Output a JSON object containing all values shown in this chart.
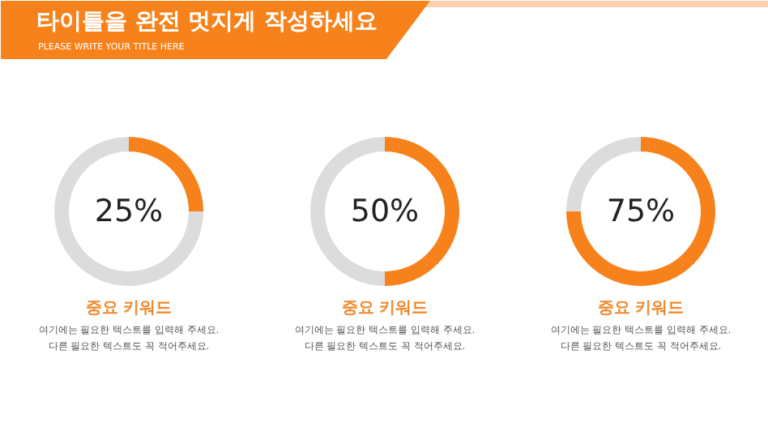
{
  "chart_data": [
    {
      "type": "other",
      "title": "타이틀을 완전 멋지게 작성하세요",
      "subtitle": "PLEASE WRITE YOUR TITLE HERE"
    },
    {
      "type": "donut",
      "categories": [
        null,
        null
      ],
      "values": [
        25,
        75
      ],
      "colors": [
        "#f7821b",
        "#dcdcdc"
      ],
      "annotations": [
        "25%",
        "중요 키워드",
        "여기에는 필요한 텍스트를 입력해 주세요.",
        "다른 필요한 텍스트도 꼭 적어주세요."
      ]
    },
    {
      "type": "donut",
      "categories": [
        null,
        null
      ],
      "values": [
        50,
        50
      ],
      "colors": [
        "#f7821b",
        "#dcdcdc"
      ],
      "annotations": [
        "50%",
        "중요 키워드",
        "여기에는 필요한 텍스트를 입력해 주세요.",
        "다른 필요한 텍스트도 꼭 적어주세요."
      ]
    },
    {
      "type": "donut",
      "categories": [
        null,
        null
      ],
      "values": [
        75,
        25
      ],
      "colors": [
        "#f7821b",
        "#dcdcdc"
      ],
      "annotations": [
        "75%",
        "중요 키워드",
        "여기에는 필요한 텍스트를 입력해 주세요.",
        "다른 필요한 텍스트도 꼭 적어주세요."
      ]
    }
  ]
}
